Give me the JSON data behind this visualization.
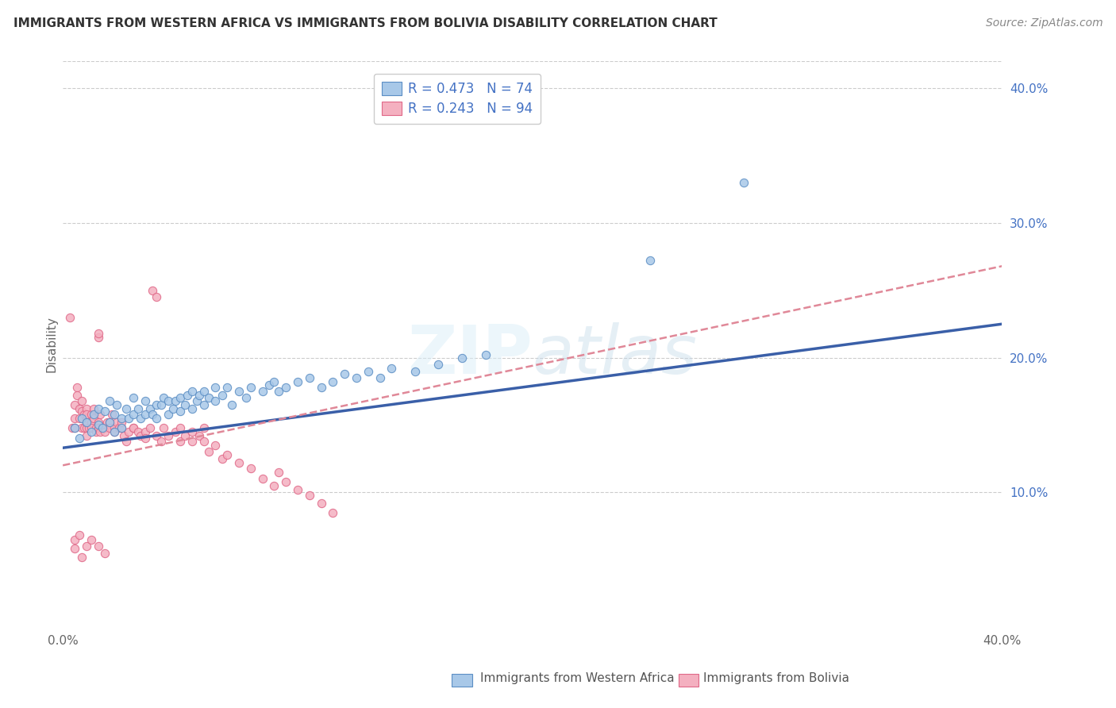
{
  "title": "IMMIGRANTS FROM WESTERN AFRICA VS IMMIGRANTS FROM BOLIVIA DISABILITY CORRELATION CHART",
  "source": "Source: ZipAtlas.com",
  "ylabel": "Disability",
  "xlim": [
    0.0,
    0.4
  ],
  "ylim": [
    0.0,
    0.42
  ],
  "yticks": [
    0.1,
    0.2,
    0.3,
    0.4
  ],
  "ytick_labels": [
    "10.0%",
    "20.0%",
    "30.0%",
    "40.0%"
  ],
  "xticks": [
    0.0,
    0.1,
    0.2,
    0.3,
    0.4
  ],
  "xtick_labels": [
    "0.0%",
    "",
    "",
    "",
    "40.0%"
  ],
  "legend_r1": "R = 0.473",
  "legend_n1": "N = 74",
  "legend_r2": "R = 0.243",
  "legend_n2": "N = 94",
  "color_western_africa_fill": "#a8c8e8",
  "color_western_africa_edge": "#5b8ec4",
  "color_bolivia_fill": "#f4b0c0",
  "color_bolivia_edge": "#e06888",
  "color_line_western_africa": "#3a5fa8",
  "color_line_bolivia": "#e08898",
  "background_color": "#ffffff",
  "grid_color": "#cccccc",
  "watermark": "ZIPatlas",
  "scatter_western_africa": [
    [
      0.005,
      0.148
    ],
    [
      0.007,
      0.14
    ],
    [
      0.008,
      0.155
    ],
    [
      0.01,
      0.152
    ],
    [
      0.012,
      0.145
    ],
    [
      0.013,
      0.158
    ],
    [
      0.015,
      0.15
    ],
    [
      0.015,
      0.162
    ],
    [
      0.017,
      0.148
    ],
    [
      0.018,
      0.16
    ],
    [
      0.02,
      0.152
    ],
    [
      0.02,
      0.168
    ],
    [
      0.022,
      0.158
    ],
    [
      0.022,
      0.145
    ],
    [
      0.023,
      0.165
    ],
    [
      0.025,
      0.155
    ],
    [
      0.025,
      0.148
    ],
    [
      0.027,
      0.162
    ],
    [
      0.028,
      0.155
    ],
    [
      0.03,
      0.17
    ],
    [
      0.03,
      0.158
    ],
    [
      0.032,
      0.162
    ],
    [
      0.033,
      0.155
    ],
    [
      0.035,
      0.168
    ],
    [
      0.035,
      0.158
    ],
    [
      0.037,
      0.162
    ],
    [
      0.038,
      0.158
    ],
    [
      0.04,
      0.165
    ],
    [
      0.04,
      0.155
    ],
    [
      0.042,
      0.165
    ],
    [
      0.043,
      0.17
    ],
    [
      0.045,
      0.168
    ],
    [
      0.045,
      0.158
    ],
    [
      0.047,
      0.162
    ],
    [
      0.048,
      0.168
    ],
    [
      0.05,
      0.17
    ],
    [
      0.05,
      0.16
    ],
    [
      0.052,
      0.165
    ],
    [
      0.053,
      0.172
    ],
    [
      0.055,
      0.175
    ],
    [
      0.055,
      0.162
    ],
    [
      0.057,
      0.168
    ],
    [
      0.058,
      0.172
    ],
    [
      0.06,
      0.175
    ],
    [
      0.06,
      0.165
    ],
    [
      0.062,
      0.17
    ],
    [
      0.065,
      0.168
    ],
    [
      0.065,
      0.178
    ],
    [
      0.068,
      0.172
    ],
    [
      0.07,
      0.178
    ],
    [
      0.072,
      0.165
    ],
    [
      0.075,
      0.175
    ],
    [
      0.078,
      0.17
    ],
    [
      0.08,
      0.178
    ],
    [
      0.085,
      0.175
    ],
    [
      0.088,
      0.18
    ],
    [
      0.09,
      0.182
    ],
    [
      0.092,
      0.175
    ],
    [
      0.095,
      0.178
    ],
    [
      0.1,
      0.182
    ],
    [
      0.105,
      0.185
    ],
    [
      0.11,
      0.178
    ],
    [
      0.115,
      0.182
    ],
    [
      0.12,
      0.188
    ],
    [
      0.125,
      0.185
    ],
    [
      0.13,
      0.19
    ],
    [
      0.135,
      0.185
    ],
    [
      0.14,
      0.192
    ],
    [
      0.15,
      0.19
    ],
    [
      0.16,
      0.195
    ],
    [
      0.17,
      0.2
    ],
    [
      0.18,
      0.202
    ],
    [
      0.25,
      0.272
    ],
    [
      0.29,
      0.33
    ]
  ],
  "scatter_bolivia": [
    [
      0.003,
      0.23
    ],
    [
      0.004,
      0.148
    ],
    [
      0.005,
      0.155
    ],
    [
      0.005,
      0.148
    ],
    [
      0.005,
      0.165
    ],
    [
      0.006,
      0.178
    ],
    [
      0.006,
      0.172
    ],
    [
      0.007,
      0.162
    ],
    [
      0.007,
      0.155
    ],
    [
      0.008,
      0.16
    ],
    [
      0.008,
      0.148
    ],
    [
      0.008,
      0.168
    ],
    [
      0.009,
      0.158
    ],
    [
      0.009,
      0.148
    ],
    [
      0.01,
      0.155
    ],
    [
      0.01,
      0.162
    ],
    [
      0.01,
      0.148
    ],
    [
      0.01,
      0.142
    ],
    [
      0.01,
      0.152
    ],
    [
      0.01,
      0.158
    ],
    [
      0.011,
      0.148
    ],
    [
      0.012,
      0.152
    ],
    [
      0.012,
      0.158
    ],
    [
      0.012,
      0.148
    ],
    [
      0.013,
      0.162
    ],
    [
      0.013,
      0.155
    ],
    [
      0.014,
      0.148
    ],
    [
      0.014,
      0.145
    ],
    [
      0.015,
      0.215
    ],
    [
      0.015,
      0.218
    ],
    [
      0.015,
      0.152
    ],
    [
      0.015,
      0.148
    ],
    [
      0.016,
      0.158
    ],
    [
      0.016,
      0.145
    ],
    [
      0.017,
      0.148
    ],
    [
      0.018,
      0.148
    ],
    [
      0.018,
      0.145
    ],
    [
      0.019,
      0.152
    ],
    [
      0.02,
      0.152
    ],
    [
      0.02,
      0.148
    ],
    [
      0.021,
      0.158
    ],
    [
      0.022,
      0.148
    ],
    [
      0.022,
      0.145
    ],
    [
      0.023,
      0.152
    ],
    [
      0.024,
      0.148
    ],
    [
      0.025,
      0.148
    ],
    [
      0.025,
      0.152
    ],
    [
      0.026,
      0.142
    ],
    [
      0.027,
      0.138
    ],
    [
      0.028,
      0.145
    ],
    [
      0.03,
      0.148
    ],
    [
      0.03,
      0.148
    ],
    [
      0.032,
      0.145
    ],
    [
      0.033,
      0.142
    ],
    [
      0.035,
      0.145
    ],
    [
      0.035,
      0.14
    ],
    [
      0.037,
      0.148
    ],
    [
      0.038,
      0.25
    ],
    [
      0.04,
      0.245
    ],
    [
      0.04,
      0.142
    ],
    [
      0.042,
      0.138
    ],
    [
      0.043,
      0.148
    ],
    [
      0.045,
      0.142
    ],
    [
      0.048,
      0.145
    ],
    [
      0.05,
      0.148
    ],
    [
      0.05,
      0.138
    ],
    [
      0.052,
      0.142
    ],
    [
      0.055,
      0.145
    ],
    [
      0.055,
      0.138
    ],
    [
      0.058,
      0.142
    ],
    [
      0.06,
      0.148
    ],
    [
      0.06,
      0.138
    ],
    [
      0.062,
      0.13
    ],
    [
      0.065,
      0.135
    ],
    [
      0.068,
      0.125
    ],
    [
      0.07,
      0.128
    ],
    [
      0.075,
      0.122
    ],
    [
      0.08,
      0.118
    ],
    [
      0.085,
      0.11
    ],
    [
      0.09,
      0.105
    ],
    [
      0.092,
      0.115
    ],
    [
      0.095,
      0.108
    ],
    [
      0.1,
      0.102
    ],
    [
      0.105,
      0.098
    ],
    [
      0.11,
      0.092
    ],
    [
      0.115,
      0.085
    ],
    [
      0.005,
      0.065
    ],
    [
      0.005,
      0.058
    ],
    [
      0.007,
      0.068
    ],
    [
      0.008,
      0.052
    ],
    [
      0.01,
      0.06
    ],
    [
      0.012,
      0.065
    ],
    [
      0.015,
      0.06
    ],
    [
      0.018,
      0.055
    ]
  ],
  "trendline_western_africa": {
    "x_start": 0.0,
    "y_start": 0.133,
    "x_end": 0.4,
    "y_end": 0.225
  },
  "trendline_bolivia": {
    "x_start": 0.0,
    "y_start": 0.12,
    "x_end": 0.4,
    "y_end": 0.268
  }
}
